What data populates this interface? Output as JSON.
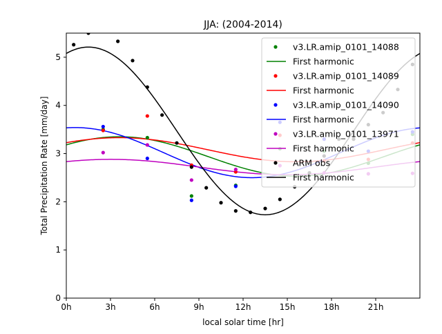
{
  "chart_data": {
    "type": "scatter",
    "title": "JJA: (2004-2014)",
    "xlabel": "local solar time [hr]",
    "ylabel": "Total Precipitation Rate [mm/day]",
    "xlim": [
      0,
      24
    ],
    "ylim": [
      0,
      5.5
    ],
    "xticks": [
      {
        "value": 0,
        "label": "0h"
      },
      {
        "value": 3,
        "label": "3h"
      },
      {
        "value": 6,
        "label": "6h"
      },
      {
        "value": 9,
        "label": "9h"
      },
      {
        "value": 12,
        "label": "12h"
      },
      {
        "value": 15,
        "label": "15h"
      },
      {
        "value": 18,
        "label": "18h"
      },
      {
        "value": 21,
        "label": "21h"
      }
    ],
    "yticks": [
      0,
      1,
      2,
      3,
      4,
      5
    ],
    "grid": false,
    "legend_position": "top-right",
    "series": [
      {
        "name": "v3.LR.amip_0101_14088",
        "color": "#008000",
        "points": [
          [
            2.5,
            3.5
          ],
          [
            5.5,
            3.33
          ],
          [
            8.5,
            2.12
          ],
          [
            11.5,
            2.34
          ],
          [
            14.5,
            3.1
          ],
          [
            17.5,
            3.05
          ],
          [
            20.5,
            2.8
          ],
          [
            23.5,
            3.4
          ]
        ],
        "harmonic": {
          "name": "First harmonic",
          "mean": 2.94,
          "amplitude": 0.41,
          "peak_hour": 3.6
        }
      },
      {
        "name": "v3.LR.amip_0101_14089",
        "color": "#ff0000",
        "points": [
          [
            2.5,
            3.48
          ],
          [
            5.5,
            3.78
          ],
          [
            8.5,
            2.76
          ],
          [
            11.5,
            2.62
          ],
          [
            14.5,
            3.38
          ],
          [
            17.5,
            2.85
          ],
          [
            20.5,
            2.88
          ],
          [
            23.5,
            3.22
          ]
        ],
        "harmonic": {
          "name": "First harmonic",
          "mean": 3.08,
          "amplitude": 0.25,
          "peak_hour": 3.6
        }
      },
      {
        "name": "v3.LR.amip_0101_14090",
        "color": "#0000ff",
        "points": [
          [
            2.5,
            3.56
          ],
          [
            5.5,
            2.9
          ],
          [
            8.5,
            2.03
          ],
          [
            11.5,
            2.32
          ],
          [
            14.5,
            3.65
          ],
          [
            17.5,
            3.3
          ],
          [
            20.5,
            3.05
          ],
          [
            23.5,
            3.45
          ]
        ],
        "harmonic": {
          "name": "First harmonic",
          "mean": 3.02,
          "amplitude": 0.52,
          "peak_hour": 0.6
        }
      },
      {
        "name": "v3.LR.amip_0101_13971",
        "color": "#bf00bf",
        "points": [
          [
            2.5,
            3.02
          ],
          [
            5.5,
            3.18
          ],
          [
            8.5,
            2.45
          ],
          [
            11.5,
            2.67
          ],
          [
            14.5,
            2.75
          ],
          [
            17.5,
            2.6
          ],
          [
            20.5,
            2.58
          ],
          [
            23.5,
            2.59
          ]
        ],
        "harmonic": {
          "name": "First harmonic",
          "mean": 2.72,
          "amplitude": 0.16,
          "peak_hour": 3.0
        }
      },
      {
        "name": "ARM obs",
        "color": "#000000",
        "points": [
          [
            0.5,
            5.26
          ],
          [
            1.5,
            5.5
          ],
          [
            3.5,
            5.33
          ],
          [
            4.5,
            4.93
          ],
          [
            5.5,
            4.38
          ],
          [
            6.5,
            3.8
          ],
          [
            7.5,
            3.22
          ],
          [
            8.5,
            2.72
          ],
          [
            9.5,
            2.29
          ],
          [
            10.5,
            1.98
          ],
          [
            11.5,
            1.81
          ],
          [
            12.5,
            1.78
          ],
          [
            13.5,
            1.86
          ],
          [
            14.5,
            2.05
          ],
          [
            15.5,
            2.31
          ],
          [
            16.5,
            2.6
          ],
          [
            17.5,
            2.95
          ],
          [
            18.5,
            3.3
          ],
          [
            19.5,
            3.3
          ],
          [
            20.5,
            3.6
          ],
          [
            21.5,
            3.85
          ],
          [
            22.5,
            4.33
          ],
          [
            23.5,
            4.85
          ]
        ],
        "harmonic": {
          "name": "First harmonic",
          "mean": 3.47,
          "amplitude": 1.74,
          "peak_hour": 1.5
        }
      }
    ]
  }
}
